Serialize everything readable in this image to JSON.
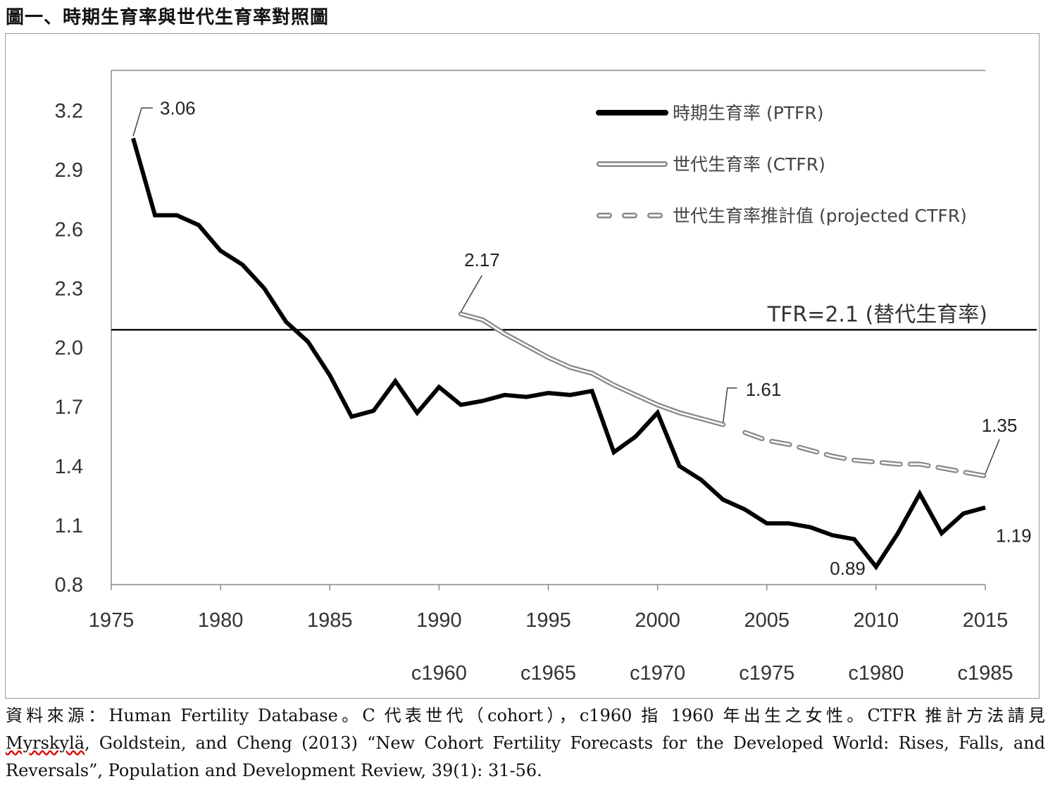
{
  "title": "圖一、時期生育率與世代生育率對照圖",
  "chart_data": {
    "type": "line",
    "title": "圖一、時期生育率與世代生育率對照圖",
    "xlabel": "",
    "ylabel": "",
    "xlim": [
      1975,
      2015
    ],
    "ylim": [
      0.8,
      3.2
    ],
    "yticks": [
      "0.8",
      "1.1",
      "1.4",
      "1.7",
      "2.0",
      "2.3",
      "2.6",
      "2.9",
      "3.2"
    ],
    "xticks": [
      "1975",
      "1980",
      "1985",
      "1990",
      "1995",
      "2000",
      "2005",
      "2010",
      "2015"
    ],
    "cohort_ticks": [
      {
        "x": 1990,
        "label": "c1960"
      },
      {
        "x": 1995,
        "label": "c1965"
      },
      {
        "x": 2000,
        "label": "c1970"
      },
      {
        "x": 2005,
        "label": "c1975"
      },
      {
        "x": 2010,
        "label": "c1980"
      },
      {
        "x": 2015,
        "label": "c1985"
      }
    ],
    "grid": false,
    "legend_position": "top-right",
    "reference_line": {
      "y": 2.09,
      "label": "TFR=2.1 (替代生育率)"
    },
    "series": [
      {
        "name": "時期生育率 (PTFR)",
        "color": "#000000",
        "style": "solid",
        "x": [
          1976,
          1977,
          1978,
          1979,
          1980,
          1981,
          1982,
          1983,
          1984,
          1985,
          1986,
          1987,
          1988,
          1989,
          1990,
          1991,
          1992,
          1993,
          1994,
          1995,
          1996,
          1997,
          1998,
          1999,
          2000,
          2001,
          2002,
          2003,
          2004,
          2005,
          2006,
          2007,
          2008,
          2009,
          2010,
          2011,
          2012,
          2013,
          2014,
          2015
        ],
        "values": [
          3.06,
          2.67,
          2.67,
          2.62,
          2.49,
          2.42,
          2.3,
          2.13,
          2.03,
          1.86,
          1.65,
          1.68,
          1.83,
          1.67,
          1.8,
          1.71,
          1.73,
          1.76,
          1.75,
          1.77,
          1.76,
          1.78,
          1.47,
          1.55,
          1.67,
          1.4,
          1.33,
          1.23,
          1.18,
          1.11,
          1.11,
          1.09,
          1.05,
          1.03,
          0.89,
          1.06,
          1.26,
          1.06,
          1.16,
          1.19
        ]
      },
      {
        "name": "世代生育率 (CTFR)",
        "color": "#888888",
        "style": "double",
        "x": [
          1991,
          1992,
          1993,
          1994,
          1995,
          1996,
          1997,
          1998,
          1999,
          2000,
          2001,
          2002,
          2003
        ],
        "values": [
          2.17,
          2.14,
          2.07,
          2.01,
          1.95,
          1.9,
          1.87,
          1.81,
          1.76,
          1.71,
          1.67,
          1.64,
          1.61
        ]
      },
      {
        "name": "世代生育率推計值 (projected CTFR)",
        "color": "#888888",
        "style": "dashed-double",
        "x": [
          2004,
          2005,
          2006,
          2007,
          2008,
          2009,
          2010,
          2011,
          2012,
          2013,
          2014,
          2015
        ],
        "values": [
          1.57,
          1.53,
          1.51,
          1.48,
          1.45,
          1.43,
          1.42,
          1.41,
          1.41,
          1.39,
          1.37,
          1.35
        ]
      }
    ],
    "annotations": [
      {
        "text": "3.06",
        "x": 1976,
        "y": 3.06
      },
      {
        "text": "2.17",
        "x": 1991,
        "y": 2.17
      },
      {
        "text": "1.61",
        "x": 2003,
        "y": 1.61
      },
      {
        "text": "1.35",
        "x": 2015,
        "y": 1.35
      },
      {
        "text": "0.89",
        "x": 2010,
        "y": 0.89
      },
      {
        "text": "1.19",
        "x": 2015,
        "y": 1.19
      }
    ]
  },
  "footnote": {
    "line1": "資料來源：Human Fertility Database。C 代表世代（cohort），c1960 指 1960 年出生之女性。CTFR 推計方法請見",
    "line2_author": "Myrskylä",
    "line2_rest": ", Goldstein, and Cheng (2013) “New Cohort Fertility Forecasts for the Developed World: Rises, Falls, and",
    "line3": "Reversals”, Population and Development Review, 39(1): 31-56."
  }
}
